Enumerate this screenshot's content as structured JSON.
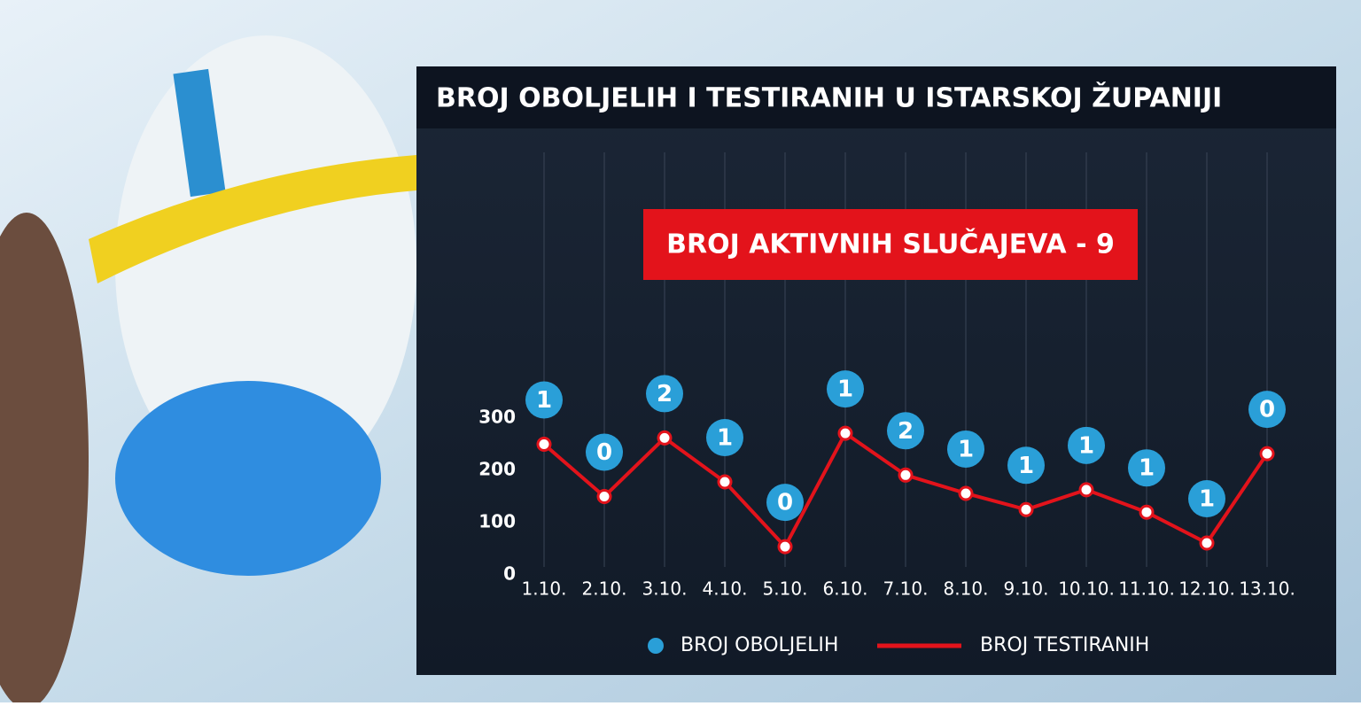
{
  "chart_data": {
    "type": "line",
    "title": "BROJ OBOLJELIH I TESTIRANIH U ISTARSKOJ ŽUPANIJI",
    "annotation": "BROJ AKTIVNIH SLUČAJEVA - 9",
    "categories": [
      "1.10.",
      "2.10.",
      "3.10.",
      "4.10.",
      "5.10.",
      "6.10.",
      "7.10.",
      "8.10.",
      "9.10.",
      "10.10.",
      "11.10.",
      "12.10.",
      "13.10."
    ],
    "series": [
      {
        "name": "BROJ OBOLJELIH",
        "type": "bubble",
        "color": "#2a9fd8",
        "values": [
          1,
          0,
          2,
          1,
          0,
          1,
          2,
          1,
          1,
          1,
          1,
          1,
          0
        ]
      },
      {
        "name": "BROJ TESTIRANIH",
        "type": "line",
        "color": "#e3131b",
        "values": [
          250,
          150,
          262,
          178,
          54,
          271,
          191,
          156,
          125,
          163,
          120,
          61,
          232
        ]
      }
    ],
    "ylim": [
      0,
      300
    ],
    "yticks": [
      0,
      100,
      200,
      300
    ],
    "grid": true
  }
}
